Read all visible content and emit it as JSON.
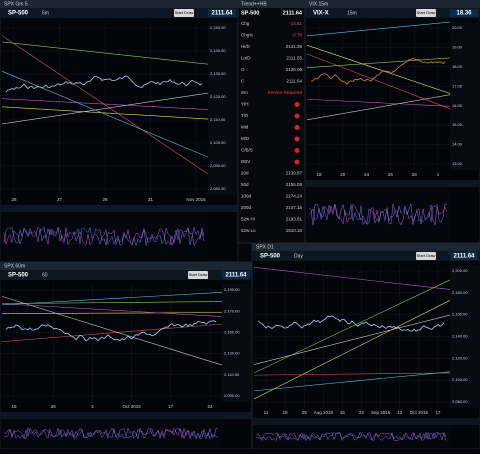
{
  "panels": [
    {
      "title": "SPX Gm 5",
      "symbol": "SP-500",
      "interval": "5m",
      "price": "2111.64",
      "x_labels": [
        "26",
        "27",
        "28",
        "31",
        "Nov 2016"
      ],
      "y_labels": [
        "2,150.00",
        "2,140.00",
        "2,130.00",
        "2,120.00",
        "2,110.00",
        "2,100.00",
        "2,090.00",
        "2,080.00"
      ]
    },
    {
      "title": "VIX 15m",
      "symbol": "VIX-X",
      "interval": "15m",
      "price": "18.36",
      "x_labels": [
        "18",
        "20",
        "24",
        "26",
        "28",
        "1"
      ],
      "y_labels": [
        "20.00",
        "19.00",
        "18.00",
        "17.00",
        "16.00",
        "15.00",
        "14.00",
        "13.00"
      ]
    },
    {
      "title": "SPX 60m",
      "symbol": "SP-500",
      "interval": "60",
      "price": "2111.64",
      "x_labels": [
        "19",
        "26",
        "3",
        "Oct 2016",
        "17",
        "24"
      ],
      "y_labels": [
        "2,190.00",
        "2,170.00",
        "2,150.00",
        "2,130.00",
        "2,110.00",
        "2,090.00"
      ]
    },
    {
      "title": "SPX D1",
      "symbol": "SP-500",
      "interval": "Day",
      "price": "2111.64",
      "x_labels": [
        "11",
        "18",
        "25",
        "Aug 2016",
        "15",
        "22",
        "Sep 2016",
        "12",
        "Oct 2016",
        "17"
      ],
      "y_labels": [
        "2,200.00",
        "2,180.00",
        "2,160.00",
        "2,140.00",
        "2,120.00",
        "2,100.00",
        "2,080.00"
      ]
    }
  ],
  "button": "Start Draw",
  "watchlist": {
    "title": "Trend++HB",
    "symbol": "SP-500",
    "price": "2111.64",
    "rows": [
      [
        "Chg",
        "-14.81"
      ],
      [
        "Chg%",
        "-0.70"
      ],
      [
        "Hi/D",
        "2131.36"
      ],
      [
        "Lo/D",
        "2111.55"
      ],
      [
        "O",
        "2126.06"
      ],
      [
        "C",
        "2111.64"
      ],
      [
        "Sm",
        "Service Required"
      ],
      [
        "Y/H",
        ""
      ],
      [
        "T/D",
        ""
      ],
      [
        "Mid",
        ""
      ],
      [
        "M/D",
        ""
      ],
      [
        "C/B/S",
        ""
      ],
      [
        "DBV",
        ""
      ],
      [
        "20d",
        "2139.87"
      ],
      [
        "50d",
        "2155.08"
      ],
      [
        "100d",
        "2174.24"
      ],
      [
        "200d",
        "2147.15"
      ],
      [
        "52w Hi",
        "2193.81"
      ],
      [
        "52w Lo",
        "1810.10"
      ]
    ]
  }
}
